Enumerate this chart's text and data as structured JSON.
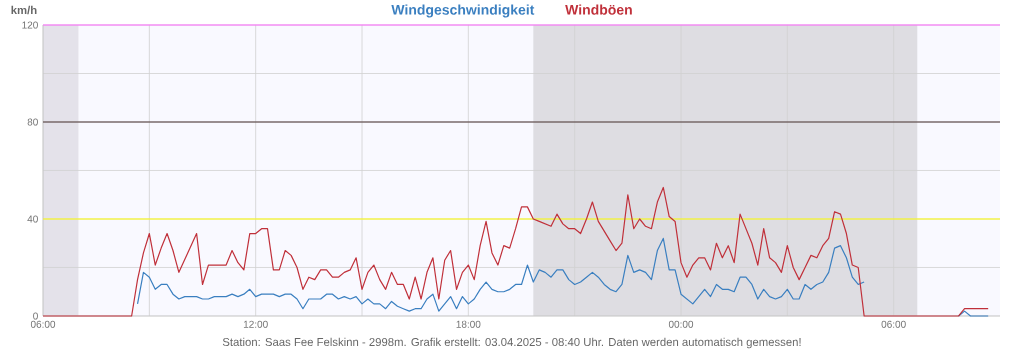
{
  "chart_data": {
    "type": "line",
    "ylabel": "km/h",
    "legend": "top",
    "grid": true,
    "annotations": [
      "Station: Saas Fee Felskinn - 2998m. Grafik erstellt: 03.04.2025 - 08:40 Uhr. Daten werden automatisch gemessen!"
    ],
    "xlim": [
      "2025-04-02T06:00",
      "2025-04-03T09:00"
    ],
    "xticks": [
      {
        "value": "2025-04-02T06:00",
        "label": "06:00"
      },
      {
        "value": "2025-04-02T09:00",
        "label": null
      },
      {
        "value": "2025-04-02T12:00",
        "label": "12:00"
      },
      {
        "value": "2025-04-02T15:00",
        "label": null
      },
      {
        "value": "2025-04-02T18:00",
        "label": "18:00"
      },
      {
        "value": "2025-04-02T21:00",
        "label": null
      },
      {
        "value": "2025-04-03T00:00",
        "label": "00:00"
      },
      {
        "value": "2025-04-03T03:00",
        "label": null
      },
      {
        "value": "2025-04-03T06:00",
        "label": "06:00"
      }
    ],
    "ylim": [
      0,
      120
    ],
    "yticks": [
      0,
      {
        "value": 20,
        "label": null
      },
      40,
      {
        "value": 60,
        "label": null
      },
      80,
      {
        "value": 100,
        "label": null
      },
      120
    ],
    "ref_lines": [
      {
        "axis": "y",
        "value": 40,
        "color": "#ffff00"
      },
      {
        "axis": "y",
        "value": 80,
        "color": "#4a3535"
      },
      {
        "axis": "y",
        "value": 120,
        "color": "#ff66ff"
      }
    ],
    "bands": [
      {
        "axis": "x",
        "from": "2025-04-02T06:00",
        "to": "2025-04-02T07:00",
        "color": "#e4e2ea"
      },
      {
        "axis": "x",
        "from": "2025-04-02T19:50",
        "to": "2025-04-03T06:40",
        "color": "#dedde2"
      }
    ],
    "series": [
      {
        "name": "Windgeschwindigkeit",
        "color": "#3a7fc0",
        "x": [
          "2025-04-02T08:40",
          "2025-04-02T08:50",
          "2025-04-02T09:00",
          "2025-04-02T09:10",
          "2025-04-02T09:20",
          "2025-04-02T09:30",
          "2025-04-02T09:40",
          "2025-04-02T09:50",
          "2025-04-02T10:00",
          "2025-04-02T10:20",
          "2025-04-02T10:30",
          "2025-04-02T10:40",
          "2025-04-02T10:50",
          "2025-04-02T11:10",
          "2025-04-02T11:20",
          "2025-04-02T11:30",
          "2025-04-02T11:40",
          "2025-04-02T11:50",
          "2025-04-02T12:00",
          "2025-04-02T12:10",
          "2025-04-02T12:30",
          "2025-04-02T12:40",
          "2025-04-02T12:50",
          "2025-04-02T13:00",
          "2025-04-02T13:10",
          "2025-04-02T13:20",
          "2025-04-02T13:30",
          "2025-04-02T13:50",
          "2025-04-02T14:00",
          "2025-04-02T14:10",
          "2025-04-02T14:20",
          "2025-04-02T14:30",
          "2025-04-02T14:40",
          "2025-04-02T14:50",
          "2025-04-02T15:00",
          "2025-04-02T15:10",
          "2025-04-02T15:20",
          "2025-04-02T15:30",
          "2025-04-02T15:40",
          "2025-04-02T15:50",
          "2025-04-02T16:00",
          "2025-04-02T16:10",
          "2025-04-02T16:20",
          "2025-04-02T16:30",
          "2025-04-02T16:40",
          "2025-04-02T16:50",
          "2025-04-02T17:00",
          "2025-04-02T17:10",
          "2025-04-02T17:20",
          "2025-04-02T17:30",
          "2025-04-02T17:40",
          "2025-04-02T17:50",
          "2025-04-02T18:00",
          "2025-04-02T18:10",
          "2025-04-02T18:20",
          "2025-04-02T18:30",
          "2025-04-02T18:40",
          "2025-04-02T18:50",
          "2025-04-02T19:00",
          "2025-04-02T19:10",
          "2025-04-02T19:20",
          "2025-04-02T19:30",
          "2025-04-02T19:40",
          "2025-04-02T19:50",
          "2025-04-02T20:00",
          "2025-04-02T20:10",
          "2025-04-02T20:20",
          "2025-04-02T20:30",
          "2025-04-02T20:40",
          "2025-04-02T20:50",
          "2025-04-02T21:00",
          "2025-04-02T21:10",
          "2025-04-02T21:20",
          "2025-04-02T21:30",
          "2025-04-02T21:40",
          "2025-04-02T21:50",
          "2025-04-02T22:00",
          "2025-04-02T22:10",
          "2025-04-02T22:20",
          "2025-04-02T22:30",
          "2025-04-02T22:40",
          "2025-04-02T22:50",
          "2025-04-02T23:00",
          "2025-04-02T23:10",
          "2025-04-02T23:20",
          "2025-04-02T23:30",
          "2025-04-02T23:40",
          "2025-04-02T23:50",
          "2025-04-03T00:00",
          "2025-04-03T00:10",
          "2025-04-03T00:20",
          "2025-04-03T00:30",
          "2025-04-03T00:40",
          "2025-04-03T00:50",
          "2025-04-03T01:00",
          "2025-04-03T01:10",
          "2025-04-03T01:20",
          "2025-04-03T01:30",
          "2025-04-03T01:40",
          "2025-04-03T01:50",
          "2025-04-03T02:00",
          "2025-04-03T02:10",
          "2025-04-03T02:20",
          "2025-04-03T02:30",
          "2025-04-03T02:40",
          "2025-04-03T02:50",
          "2025-04-03T03:00",
          "2025-04-03T03:10",
          "2025-04-03T03:20",
          "2025-04-03T03:30",
          "2025-04-03T03:40",
          "2025-04-03T03:50",
          "2025-04-03T04:00",
          "2025-04-03T04:10",
          "2025-04-03T04:20",
          "2025-04-03T04:30",
          "2025-04-03T04:40",
          "2025-04-03T04:50",
          "2025-04-03T05:00",
          "2025-04-03T05:10",
          "2025-04-03T06:00",
          "2025-04-03T07:50",
          "2025-04-03T08:00",
          "2025-04-03T08:10",
          "2025-04-03T08:40"
        ],
        "values": [
          5,
          18,
          16,
          11,
          13,
          13,
          9,
          7,
          8,
          8,
          7,
          7,
          8,
          8,
          9,
          8,
          9,
          11,
          8,
          9,
          9,
          8,
          9,
          9,
          7,
          3,
          7,
          7,
          9,
          9,
          7,
          8,
          7,
          8,
          5,
          7,
          5,
          5,
          3,
          6,
          4,
          3,
          2,
          3,
          3,
          7,
          9,
          2,
          5,
          8,
          3,
          8,
          5,
          7,
          11,
          14,
          11,
          10,
          10,
          11,
          13,
          13,
          21,
          14,
          19,
          18,
          16,
          19,
          19,
          15,
          13,
          14,
          16,
          18,
          16,
          13,
          11,
          10,
          13,
          25,
          18,
          19,
          18,
          15,
          27,
          32,
          19,
          19,
          9,
          7,
          5,
          8,
          11,
          8,
          13,
          11,
          11,
          10,
          16,
          16,
          13,
          7,
          11,
          8,
          7,
          8,
          11,
          7,
          7,
          13,
          11,
          13,
          14,
          18,
          28,
          29,
          24,
          16,
          13,
          14,
          null,
          0,
          2,
          0,
          0
        ]
      },
      {
        "name": "Windböen",
        "color": "#c0303a",
        "x": [
          "2025-04-02T06:00",
          "2025-04-02T08:30",
          "2025-04-02T08:40",
          "2025-04-02T08:50",
          "2025-04-02T09:00",
          "2025-04-02T09:10",
          "2025-04-02T09:20",
          "2025-04-02T09:30",
          "2025-04-02T09:40",
          "2025-04-02T09:50",
          "2025-04-02T10:20",
          "2025-04-02T10:30",
          "2025-04-02T10:40",
          "2025-04-02T11:10",
          "2025-04-02T11:20",
          "2025-04-02T11:30",
          "2025-04-02T11:40",
          "2025-04-02T11:50",
          "2025-04-02T12:00",
          "2025-04-02T12:10",
          "2025-04-02T12:20",
          "2025-04-02T12:30",
          "2025-04-02T12:40",
          "2025-04-02T12:50",
          "2025-04-02T13:00",
          "2025-04-02T13:10",
          "2025-04-02T13:20",
          "2025-04-02T13:30",
          "2025-04-02T13:40",
          "2025-04-02T13:50",
          "2025-04-02T14:00",
          "2025-04-02T14:10",
          "2025-04-02T14:20",
          "2025-04-02T14:30",
          "2025-04-02T14:40",
          "2025-04-02T14:50",
          "2025-04-02T15:00",
          "2025-04-02T15:10",
          "2025-04-02T15:20",
          "2025-04-02T15:30",
          "2025-04-02T15:40",
          "2025-04-02T15:50",
          "2025-04-02T16:00",
          "2025-04-02T16:10",
          "2025-04-02T16:20",
          "2025-04-02T16:30",
          "2025-04-02T16:40",
          "2025-04-02T16:50",
          "2025-04-02T17:00",
          "2025-04-02T17:10",
          "2025-04-02T17:20",
          "2025-04-02T17:30",
          "2025-04-02T17:40",
          "2025-04-02T17:50",
          "2025-04-02T18:00",
          "2025-04-02T18:10",
          "2025-04-02T18:20",
          "2025-04-02T18:30",
          "2025-04-02T18:40",
          "2025-04-02T18:50",
          "2025-04-02T19:00",
          "2025-04-02T19:10",
          "2025-04-02T19:20",
          "2025-04-02T19:30",
          "2025-04-02T19:40",
          "2025-04-02T19:50",
          "2025-04-02T20:00",
          "2025-04-02T20:10",
          "2025-04-02T20:20",
          "2025-04-02T20:30",
          "2025-04-02T20:40",
          "2025-04-02T20:50",
          "2025-04-02T21:00",
          "2025-04-02T21:10",
          "2025-04-02T21:20",
          "2025-04-02T21:30",
          "2025-04-02T21:40",
          "2025-04-02T21:50",
          "2025-04-02T22:00",
          "2025-04-02T22:10",
          "2025-04-02T22:20",
          "2025-04-02T22:30",
          "2025-04-02T22:40",
          "2025-04-02T22:50",
          "2025-04-02T23:00",
          "2025-04-02T23:10",
          "2025-04-02T23:20",
          "2025-04-02T23:30",
          "2025-04-02T23:40",
          "2025-04-02T23:50",
          "2025-04-03T00:00",
          "2025-04-03T00:10",
          "2025-04-03T00:20",
          "2025-04-03T00:30",
          "2025-04-03T00:40",
          "2025-04-03T00:50",
          "2025-04-03T01:00",
          "2025-04-03T01:10",
          "2025-04-03T01:20",
          "2025-04-03T01:30",
          "2025-04-03T01:40",
          "2025-04-03T01:50",
          "2025-04-03T02:00",
          "2025-04-03T02:10",
          "2025-04-03T02:20",
          "2025-04-03T02:30",
          "2025-04-03T02:40",
          "2025-04-03T02:50",
          "2025-04-03T03:00",
          "2025-04-03T03:10",
          "2025-04-03T03:20",
          "2025-04-03T03:30",
          "2025-04-03T03:40",
          "2025-04-03T03:50",
          "2025-04-03T04:00",
          "2025-04-03T04:10",
          "2025-04-03T04:20",
          "2025-04-03T04:30",
          "2025-04-03T04:40",
          "2025-04-03T04:50",
          "2025-04-03T05:00",
          "2025-04-03T05:10",
          "2025-04-03T07:50",
          "2025-04-03T08:00",
          "2025-04-03T08:40"
        ],
        "values": [
          0,
          0,
          15,
          26,
          34,
          21,
          28,
          34,
          27,
          18,
          34,
          13,
          21,
          21,
          27,
          22,
          19,
          34,
          34,
          36,
          36,
          19,
          19,
          27,
          25,
          20,
          11,
          16,
          15,
          19,
          19,
          16,
          16,
          18,
          19,
          24,
          11,
          18,
          21,
          15,
          11,
          18,
          13,
          13,
          7,
          16,
          7,
          18,
          24,
          7,
          23,
          27,
          11,
          18,
          21,
          15,
          29,
          39,
          26,
          21,
          29,
          28,
          36,
          45,
          45,
          40,
          39,
          38,
          37,
          42,
          38,
          36,
          36,
          34,
          40,
          47,
          39,
          35,
          31,
          27,
          30,
          50,
          36,
          40,
          37,
          36,
          47,
          53,
          41,
          39,
          22,
          16,
          21,
          24,
          24,
          19,
          30,
          24,
          29,
          22,
          42,
          36,
          30,
          21,
          36,
          24,
          22,
          18,
          29,
          20,
          15,
          20,
          25,
          24,
          29,
          32,
          43,
          42,
          34,
          21,
          20,
          0,
          0,
          3,
          3
        ]
      }
    ]
  }
}
